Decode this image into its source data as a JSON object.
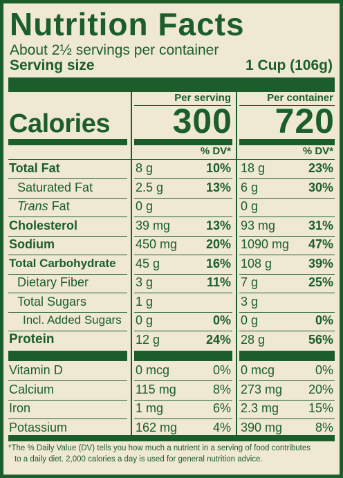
{
  "title": "Nutrition Facts",
  "servings_per_container": "About 2½ servings per container",
  "serving_size": {
    "label": "Serving size",
    "value": "1 Cup (106g)"
  },
  "columns": {
    "per_serving": "Per serving",
    "per_container": "Per container"
  },
  "calories": {
    "label": "Calories",
    "per_serving": "300",
    "per_container": "720"
  },
  "dv_header": "% DV*",
  "nutrients": [
    {
      "name": "Total Fat",
      "amount1": "8 g",
      "dv1": "10%",
      "amount2": "18 g",
      "dv2": "23%"
    },
    {
      "name": "Saturated Fat",
      "amount1": "2.5 g",
      "dv1": "13%",
      "amount2": "6 g",
      "dv2": "30%"
    },
    {
      "name_italic": "Trans",
      "name_rest": " Fat",
      "amount1": "0 g",
      "dv1": "",
      "amount2": "0 g",
      "dv2": ""
    },
    {
      "name": "Cholesterol",
      "amount1": "39 mg",
      "dv1": "13%",
      "amount2": "93 mg",
      "dv2": "31%"
    },
    {
      "name": "Sodium",
      "amount1": "450 mg",
      "dv1": "20%",
      "amount2": "1090 mg",
      "dv2": "47%"
    },
    {
      "name": "Total Carbohydrate",
      "amount1": "45 g",
      "dv1": "16%",
      "amount2": "108 g",
      "dv2": "39%"
    },
    {
      "name": "Dietary Fiber",
      "amount1": "3 g",
      "dv1": "11%",
      "amount2": "7 g",
      "dv2": "25%"
    },
    {
      "name": "Total Sugars",
      "amount1": "1 g",
      "dv1": "",
      "amount2": "3 g",
      "dv2": ""
    },
    {
      "name": "Incl. Added Sugars",
      "amount1": "0 g",
      "dv1": "0%",
      "amount2": "0 g",
      "dv2": "0%"
    },
    {
      "name": "Protein",
      "amount1": "12 g",
      "dv1": "24%",
      "amount2": "28 g",
      "dv2": "56%"
    }
  ],
  "vitamins": [
    {
      "name": "Vitamin D",
      "amount1": "0 mcg",
      "dv1": "0%",
      "amount2": "0 mcg",
      "dv2": "0%"
    },
    {
      "name": "Calcium",
      "amount1": "115 mg",
      "dv1": "8%",
      "amount2": "273 mg",
      "dv2": "20%"
    },
    {
      "name": "Iron",
      "amount1": "1 mg",
      "dv1": "6%",
      "amount2": "2.3 mg",
      "dv2": "15%"
    },
    {
      "name": "Potassium",
      "amount1": "162 mg",
      "dv1": "4%",
      "amount2": "390 mg",
      "dv2": "8%"
    }
  ],
  "footnote": {
    "line1": "*The % Daily Value (DV) tells you how much a nutrient in a serving of food contributes",
    "line2": "to a daily diet. 2,000 calories a day is used for general nutrition advice."
  },
  "colors": {
    "ink": "#1b5e2b",
    "background": "#efe8d2"
  }
}
